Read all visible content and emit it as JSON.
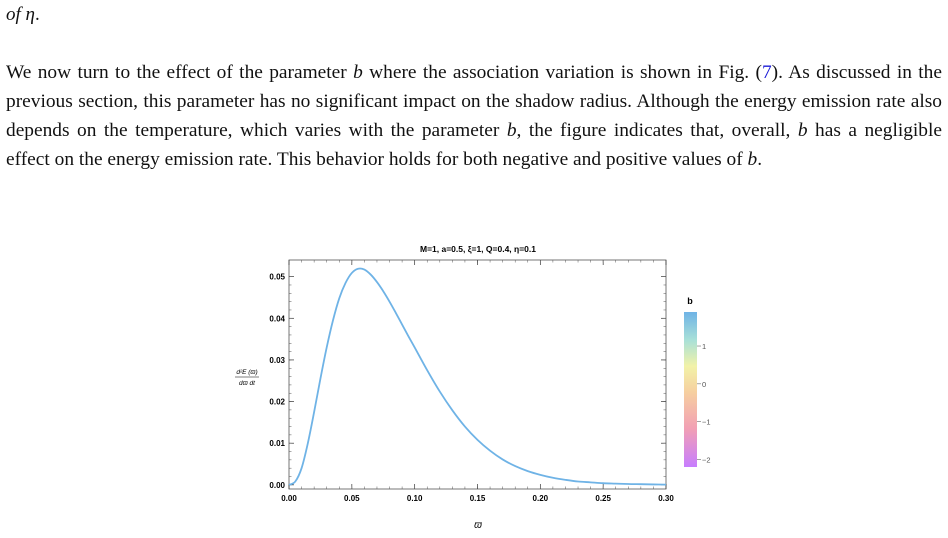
{
  "text": {
    "fragment_pre": "of",
    "fragment_sym": "η",
    "fragment_post": ".",
    "p1": "We now turn to the effect of the parameter ",
    "p_b1": "b",
    "p2": " where the association variation is shown in Fig. (",
    "p_ref": "7",
    "p3": "). As discussed in the previous section, this parameter has no significant impact on the shadow radius. Although the energy emission rate also depends on the temperature, which varies with the parameter ",
    "p_b2": "b",
    "p4": ", the figure indicates that, overall, ",
    "p_b3": "b",
    "p5": " has a negligible effect on the energy emission rate. This behavior holds for both negative and positive values of ",
    "p_b4": "b",
    "p6": "."
  },
  "chart_data": {
    "type": "line",
    "title": "M=1, a=0.5, ξ=1, Q=0.4, η=0.1",
    "xlabel": "ϖ",
    "ylabel_num": "d²E (ϖ)",
    "ylabel_den": "dϖ dt",
    "xlim": [
      0,
      0.3
    ],
    "ylim": [
      -0.001,
      0.054
    ],
    "x_ticks": [
      0.0,
      0.05,
      0.1,
      0.15,
      0.2,
      0.25,
      0.3
    ],
    "x_tick_labels": [
      "0.00",
      "0.05",
      "0.10",
      "0.15",
      "0.20",
      "0.25",
      "0.30"
    ],
    "y_ticks": [
      0.0,
      0.01,
      0.02,
      0.03,
      0.04,
      0.05
    ],
    "y_tick_labels": [
      "0.00",
      "0.01",
      "0.02",
      "0.03",
      "0.04",
      "0.05"
    ],
    "line_color": "#6fb3e6",
    "series": [
      {
        "x": [
          0.0,
          0.005,
          0.01,
          0.015,
          0.02,
          0.025,
          0.03,
          0.035,
          0.04,
          0.045,
          0.05,
          0.055,
          0.06,
          0.065,
          0.07,
          0.075,
          0.08,
          0.085,
          0.09,
          0.095,
          0.1,
          0.11,
          0.12,
          0.13,
          0.14,
          0.15,
          0.16,
          0.17,
          0.18,
          0.19,
          0.2,
          0.21,
          0.22,
          0.23,
          0.24,
          0.25,
          0.26,
          0.27,
          0.28,
          0.29,
          0.3
        ],
        "y": [
          0.0,
          0.0008,
          0.004,
          0.01,
          0.0175,
          0.0255,
          0.033,
          0.0395,
          0.0448,
          0.0485,
          0.0509,
          0.0519,
          0.0517,
          0.0505,
          0.0487,
          0.0465,
          0.044,
          0.0413,
          0.0385,
          0.0357,
          0.033,
          0.0275,
          0.0224,
          0.0179,
          0.014,
          0.0108,
          0.0082,
          0.0061,
          0.0045,
          0.0033,
          0.0024,
          0.0017,
          0.0012,
          0.0008,
          0.0006,
          0.0004,
          0.0003,
          0.0002,
          0.00015,
          0.0001,
          5e-05
        ]
      }
    ],
    "legend": {
      "title": "b",
      "type": "colorbar",
      "range": [
        -2.2,
        1.9
      ],
      "ticks": [
        1,
        0,
        -1,
        -2
      ],
      "tick_labels": [
        "1",
        "0",
        "−1",
        "−2"
      ]
    }
  }
}
